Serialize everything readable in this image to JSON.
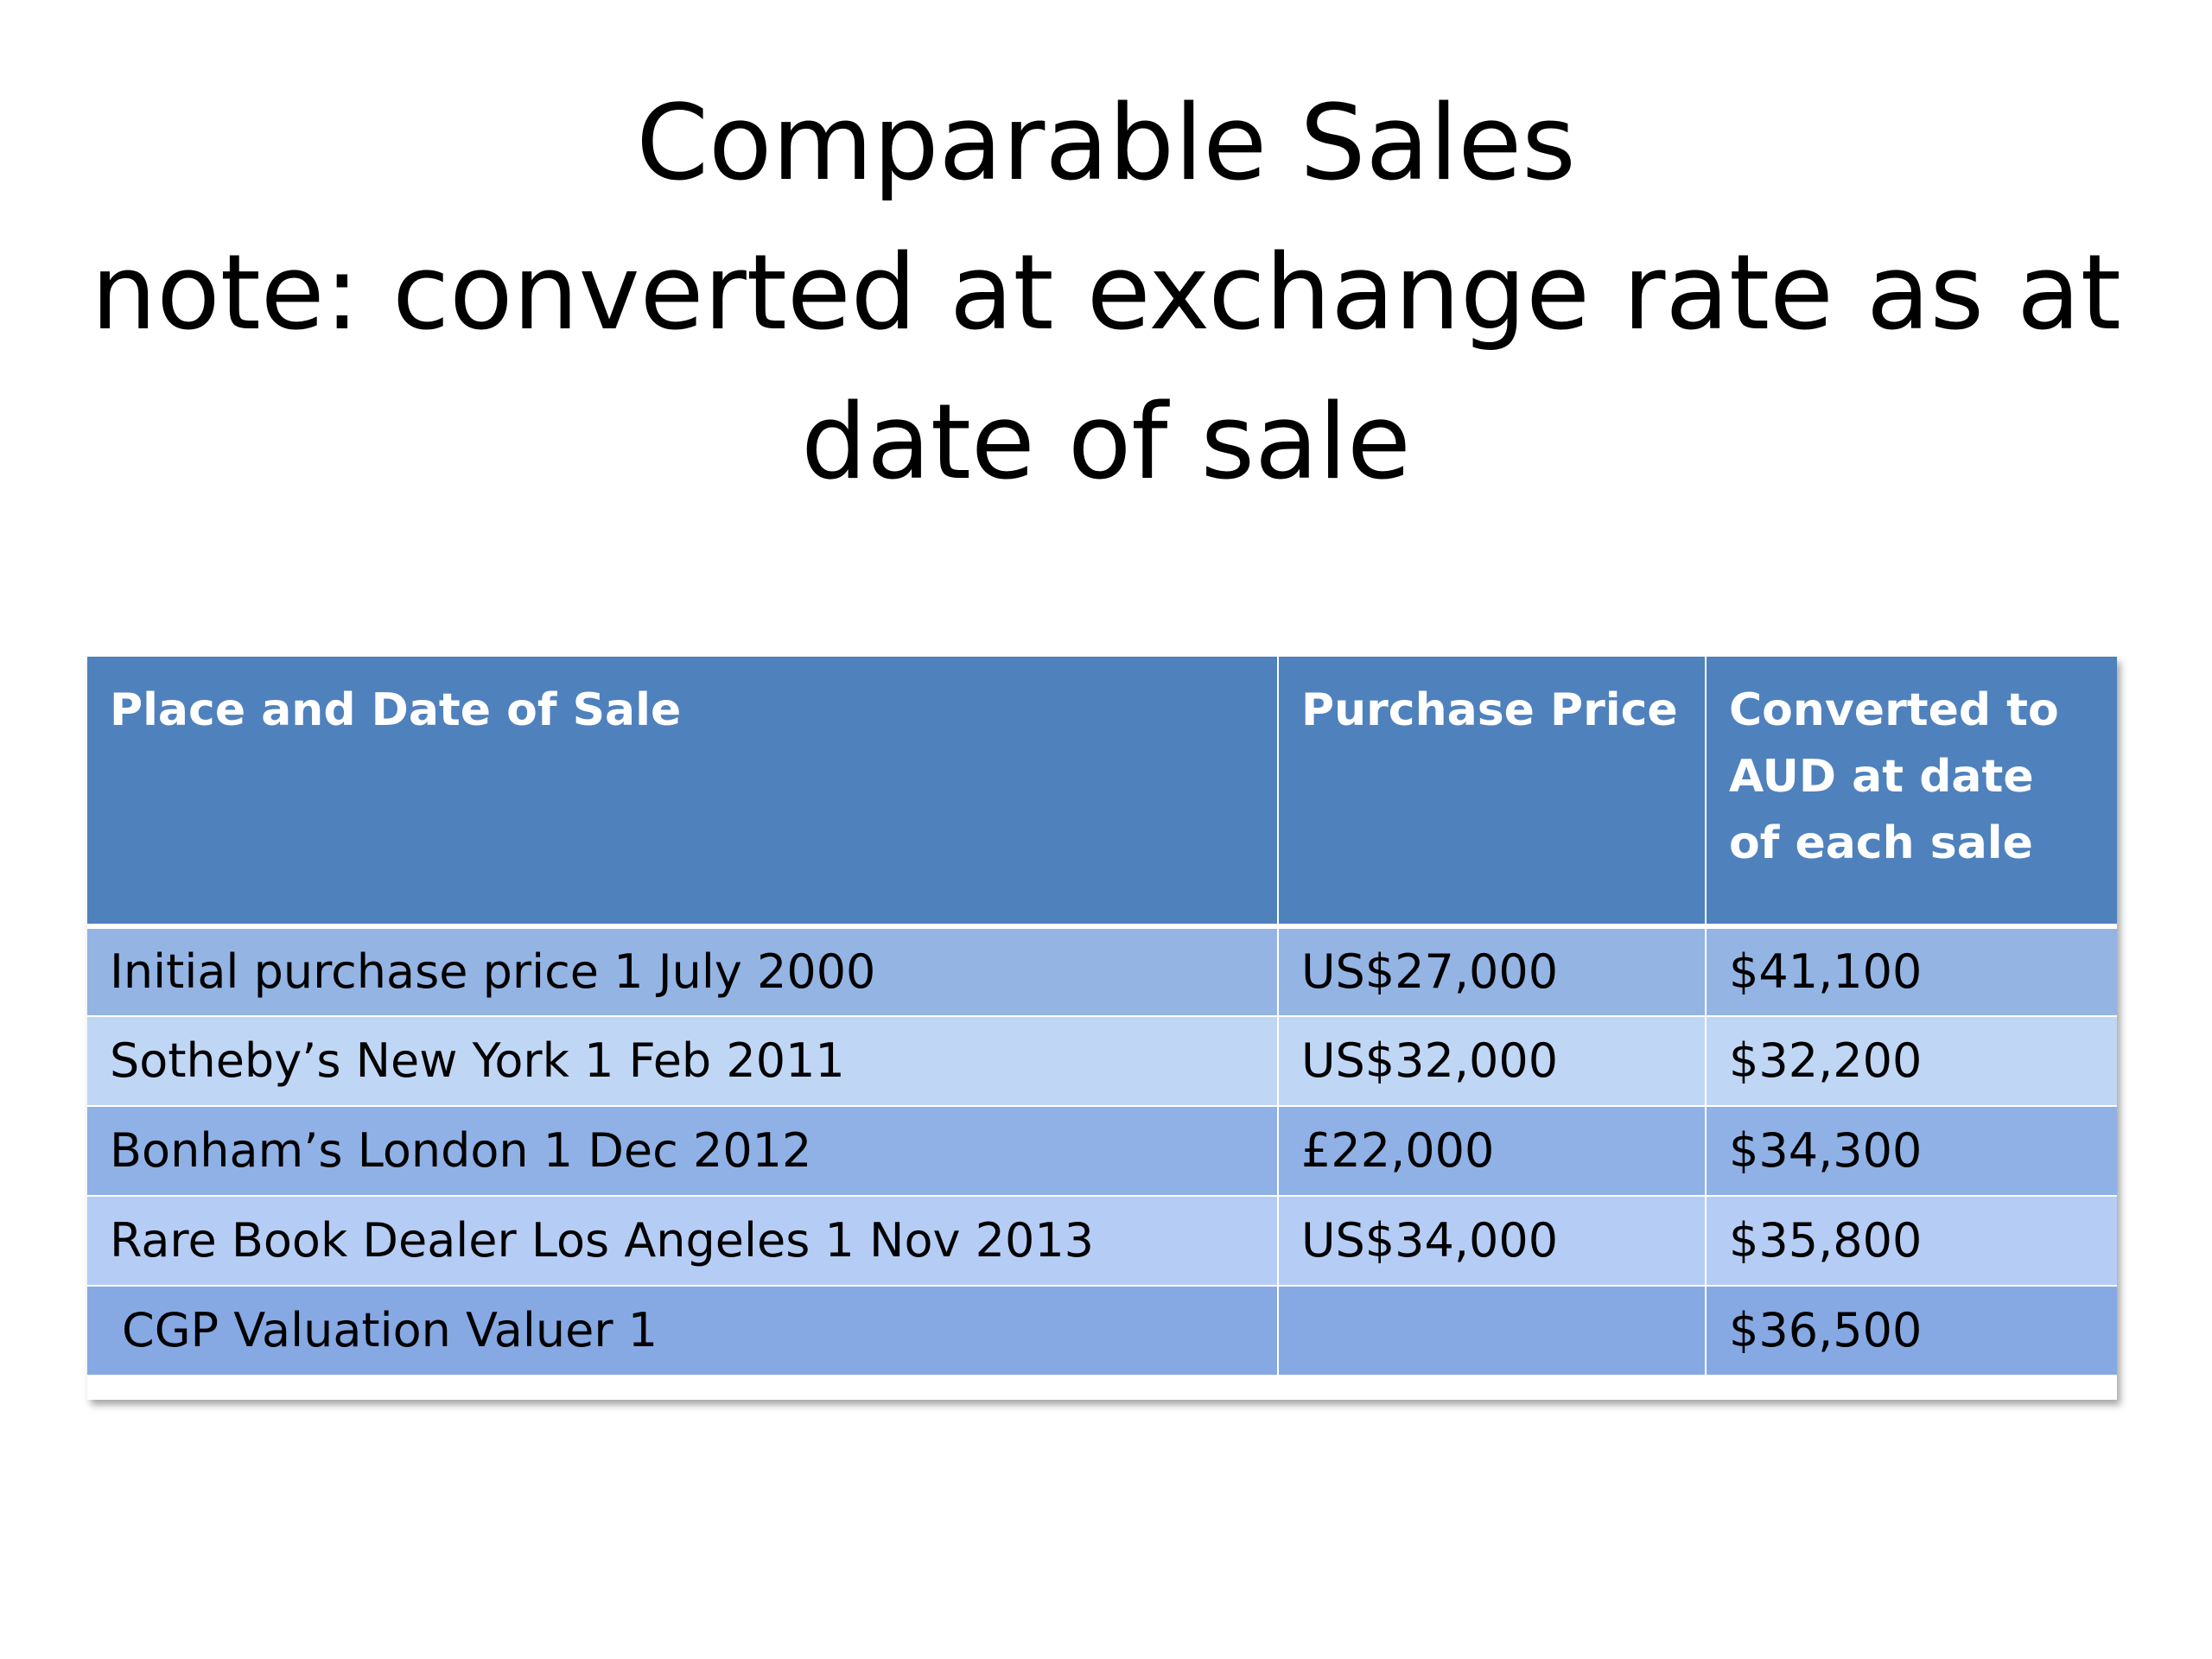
{
  "slide": {
    "title_lines": [
      "Comparable Sales",
      "note: converted at exchange rate as at",
      "date of sale"
    ]
  },
  "table": {
    "headers": [
      "Place and Date of Sale",
      "Purchase Price",
      "Converted to AUD at date of each sale"
    ],
    "rows": [
      [
        "Initial purchase price 1 July 2000",
        "US$27,000",
        "$41,100"
      ],
      [
        "Sotheby’s New York 1 Feb 2011",
        "US$32,000",
        "$32,200"
      ],
      [
        "Bonham’s London  1 Dec 2012",
        "£22,000",
        "$34,300"
      ],
      [
        "Rare Book Dealer Los Angeles 1 Nov 2013",
        "US$34,000",
        "$35,800"
      ],
      [
        "CGP Valuation  Valuer 1",
        "",
        "$36,500"
      ]
    ]
  },
  "colors": {
    "header_bg": "#4f81bd",
    "row_band_dark": "#94b4e3",
    "row_band_light": "#c0d6f5"
  }
}
